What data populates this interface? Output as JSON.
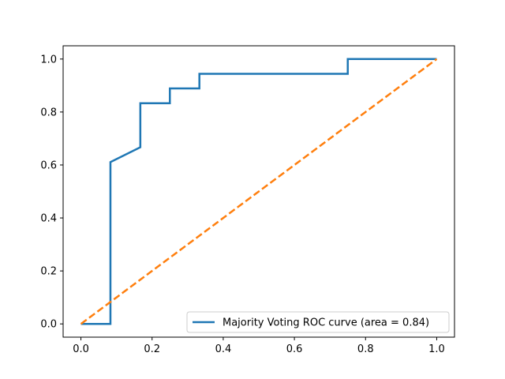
{
  "chart_data": {
    "type": "line",
    "title": "",
    "xlabel": "",
    "ylabel": "",
    "xlim": [
      -0.05,
      1.05
    ],
    "ylim": [
      -0.05,
      1.05
    ],
    "grid": false,
    "legend_position": "lower-right",
    "xticks": [
      0.0,
      0.2,
      0.4,
      0.6,
      0.8,
      1.0
    ],
    "yticks": [
      0.0,
      0.2,
      0.4,
      0.6,
      0.8,
      1.0
    ],
    "xtick_labels": [
      "0.0",
      "0.2",
      "0.4",
      "0.6",
      "0.8",
      "1.0"
    ],
    "ytick_labels": [
      "0.0",
      "0.2",
      "0.4",
      "0.6",
      "0.8",
      "1.0"
    ],
    "series": [
      {
        "name": "Majority Voting ROC curve (area = 0.84)",
        "color": "#1f77b4",
        "line_style": "solid",
        "x": [
          0.0,
          0.083,
          0.083,
          0.167,
          0.167,
          0.25,
          0.25,
          0.333,
          0.333,
          0.75,
          0.75,
          1.0
        ],
        "y": [
          0.0,
          0.0,
          0.611,
          0.667,
          0.833,
          0.833,
          0.889,
          0.889,
          0.944,
          0.944,
          1.0,
          1.0
        ]
      },
      {
        "color": "#ff7f0e",
        "line_style": "dashed",
        "x": [
          0.0,
          1.0
        ],
        "y": [
          0.0,
          1.0
        ]
      }
    ]
  }
}
